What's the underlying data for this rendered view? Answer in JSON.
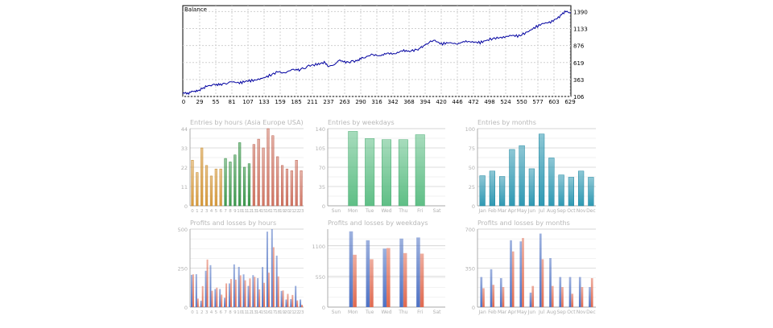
{
  "chart_data": [
    {
      "id": "balance",
      "type": "line",
      "title": "Balance",
      "x_ticks": [
        "0",
        "29",
        "55",
        "81",
        "107",
        "133",
        "159",
        "185",
        "211",
        "237",
        "263",
        "290",
        "316",
        "342",
        "368",
        "394",
        "420",
        "446",
        "472",
        "498",
        "524",
        "550",
        "577",
        "603",
        "629"
      ],
      "y_ticks": [
        "106",
        "363",
        "619",
        "876",
        "1133",
        "1390"
      ],
      "xlim": [
        0,
        650
      ],
      "ylim": [
        106,
        1480
      ],
      "grid": true,
      "color": "#0000a0",
      "series": [
        {
          "x": [
            0,
            10,
            20,
            29,
            40,
            55,
            65,
            81,
            95,
            107,
            120,
            133,
            145,
            159,
            170,
            185,
            195,
            211,
            225,
            237,
            245,
            263,
            275,
            290,
            300,
            316,
            330,
            342,
            355,
            368,
            380,
            394,
            405,
            420,
            433,
            446,
            460,
            472,
            485,
            498,
            510,
            524,
            537,
            550,
            563,
            577,
            590,
            603,
            616,
            629,
            640,
            650
          ],
          "y": [
            150,
            160,
            190,
            210,
            260,
            290,
            280,
            330,
            310,
            340,
            350,
            380,
            420,
            480,
            460,
            520,
            500,
            570,
            590,
            620,
            560,
            650,
            620,
            650,
            680,
            740,
            720,
            760,
            750,
            800,
            790,
            820,
            880,
            960,
            900,
            920,
            900,
            940,
            930,
            920,
            960,
            990,
            1000,
            1030,
            1020,
            1080,
            1150,
            1210,
            1230,
            1300,
            1390,
            1370
          ]
        }
      ]
    },
    {
      "id": "entries-hours",
      "type": "bar",
      "title": "Entries by hours (Asia Europe USA)",
      "categories": [
        "0",
        "1",
        "2",
        "3",
        "4",
        "5",
        "6",
        "7",
        "8",
        "9",
        "10",
        "11",
        "12",
        "13",
        "14",
        "15",
        "16",
        "17",
        "18",
        "19",
        "20",
        "21",
        "22",
        "23"
      ],
      "x_labels": [
        "0",
        "1",
        "2",
        "3",
        "4",
        "5",
        "6",
        "7",
        "8",
        "9",
        "10",
        "11",
        "12",
        "13",
        "14",
        "15",
        "16",
        "17",
        "18",
        "19",
        "20",
        "21",
        "22",
        "23"
      ],
      "values": [
        26,
        19,
        33,
        23,
        17,
        21,
        21,
        27,
        25,
        29,
        36,
        22,
        24,
        35,
        38,
        33,
        44,
        40,
        28,
        23,
        21,
        20,
        26,
        20
      ],
      "colors": [
        "#d89b3d",
        "#d89b3d",
        "#d89b3d",
        "#d89b3d",
        "#d89b3d",
        "#d89b3d",
        "#d89b3d",
        "#3e9a4e",
        "#3e9a4e",
        "#3e9a4e",
        "#3e9a4e",
        "#3e9a4e",
        "#3e9a4e",
        "#d07462",
        "#d07462",
        "#d07462",
        "#d07462",
        "#d07462",
        "#d07462",
        "#d07462",
        "#d07462",
        "#d07462",
        "#d07462",
        "#d07462"
      ],
      "y_ticks": [
        "0",
        "11",
        "22",
        "33",
        "44"
      ],
      "ylim": [
        0,
        44
      ]
    },
    {
      "id": "entries-weekdays",
      "type": "bar",
      "title": "Entries by weekdays",
      "categories": [
        "Sun",
        "Mon",
        "Tue",
        "Wed",
        "Thu",
        "Fri",
        "Sat"
      ],
      "values": [
        0,
        135,
        122,
        120,
        120,
        129,
        0
      ],
      "color": "#5fbf86",
      "y_ticks": [
        "0",
        "35",
        "70",
        "105",
        "140"
      ],
      "ylim": [
        0,
        140
      ]
    },
    {
      "id": "entries-months",
      "type": "bar",
      "title": "Entries by months",
      "categories": [
        "Jan",
        "Feb",
        "Mar",
        "Apr",
        "May",
        "Jun",
        "Jul",
        "Aug",
        "Sep",
        "Oct",
        "Nov",
        "Dec"
      ],
      "values": [
        39,
        45,
        38,
        73,
        78,
        48,
        93,
        62,
        40,
        37,
        45,
        37
      ],
      "color": "#2f99b3",
      "y_ticks": [
        "0",
        "25",
        "50",
        "75",
        "100"
      ],
      "ylim": [
        0,
        100
      ]
    },
    {
      "id": "pl-hours",
      "type": "bar",
      "title": "Profits and losses by hours",
      "categories": [
        "0",
        "1",
        "2",
        "3",
        "4",
        "5",
        "6",
        "7",
        "8",
        "9",
        "10",
        "11",
        "12",
        "13",
        "14",
        "15",
        "16",
        "17",
        "18",
        "19",
        "20",
        "21",
        "22",
        "23"
      ],
      "x_labels": [
        "0",
        "1",
        "2",
        "3",
        "4",
        "5",
        "6",
        "7",
        "8",
        "9",
        "10",
        "11",
        "12",
        "13",
        "14",
        "15",
        "16",
        "17",
        "18",
        "19",
        "20",
        "21",
        "22",
        "23"
      ],
      "series": [
        {
          "color": "#4e72c4",
          "values": [
            207,
            211,
            41,
            233,
            269,
            116,
            116,
            60,
            152,
            274,
            258,
            210,
            136,
            205,
            186,
            257,
            484,
            500,
            330,
            104,
            49,
            52,
            136,
            49
          ]
        },
        {
          "color": "#e06a50",
          "values": [
            210,
            55,
            135,
            305,
            105,
            125,
            80,
            152,
            180,
            176,
            204,
            172,
            184,
            194,
            114,
            156,
            221,
            384,
            197,
            107,
            85,
            78,
            43,
            15
          ]
        }
      ],
      "y_ticks": [
        "0",
        "250",
        "500"
      ],
      "ylim": [
        0,
        500
      ]
    },
    {
      "id": "pl-weekdays",
      "type": "bar",
      "title": "Profits and losses by weekdays",
      "categories": [
        "Sun",
        "Mon",
        "Tue",
        "Wed",
        "Thu",
        "Fri",
        "Sat"
      ],
      "series": [
        {
          "color": "#4e72c4",
          "values": [
            0,
            1360,
            1200,
            1050,
            1230,
            1250,
            0
          ]
        },
        {
          "color": "#e06a50",
          "values": [
            0,
            940,
            860,
            1060,
            970,
            960,
            0
          ]
        }
      ],
      "y_ticks": [
        "0",
        "550",
        "1100"
      ],
      "ylim": [
        0,
        1400
      ]
    },
    {
      "id": "pl-months",
      "type": "bar",
      "title": "Profits and losses by months",
      "categories": [
        "Jan",
        "Feb",
        "Mar",
        "Apr",
        "May",
        "Jun",
        "Jul",
        "Aug",
        "Sep",
        "Oct",
        "Nov",
        "Dec"
      ],
      "series": [
        {
          "color": "#4e72c4",
          "values": [
            270,
            340,
            260,
            600,
            590,
            130,
            660,
            440,
            270,
            270,
            270,
            180
          ]
        },
        {
          "color": "#e06a50",
          "values": [
            170,
            200,
            180,
            500,
            620,
            190,
            430,
            190,
            180,
            120,
            180,
            260
          ]
        }
      ],
      "y_ticks": [
        "0",
        "350",
        "700"
      ],
      "ylim": [
        0,
        700
      ]
    }
  ]
}
